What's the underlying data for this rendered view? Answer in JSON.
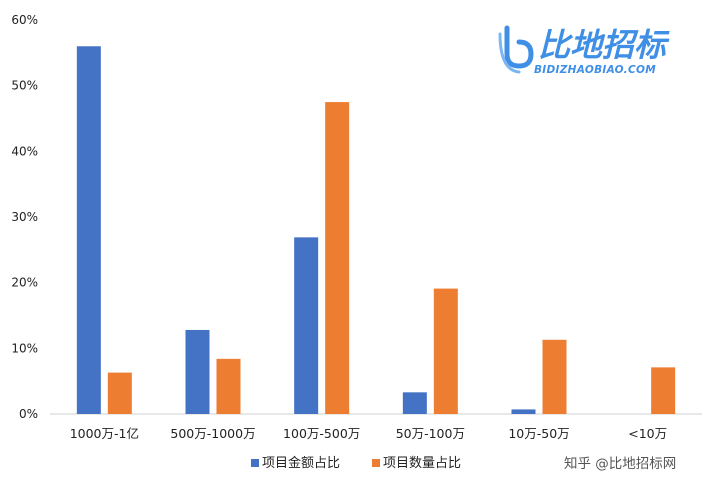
{
  "chart_data": {
    "type": "bar",
    "categories": [
      "1000万-1亿",
      "500万-1000万",
      "100万-500万",
      "50万-100万",
      "10万-50万",
      "<10万"
    ],
    "series": [
      {
        "name": "项目金额占比",
        "values": [
          56,
          12.8,
          26.9,
          3.3,
          0.7,
          0
        ],
        "color": "#4472c4"
      },
      {
        "name": "项目数量占比",
        "values": [
          6.3,
          8.4,
          47.5,
          19.1,
          11.3,
          7.1
        ],
        "color": "#ed7d31"
      }
    ],
    "ylim": [
      0,
      60
    ],
    "yticks": [
      "0%",
      "10%",
      "20%",
      "30%",
      "40%",
      "50%",
      "60%"
    ],
    "ytick_values": [
      0,
      10,
      20,
      30,
      40,
      50,
      60
    ],
    "grid": false,
    "legend_position": "bottom-center"
  },
  "logo": {
    "brand_text": "比地招标",
    "domain_text": "BIDIZHAOBIAO.COM"
  },
  "watermark": {
    "text": "知乎 @比地招标网"
  }
}
